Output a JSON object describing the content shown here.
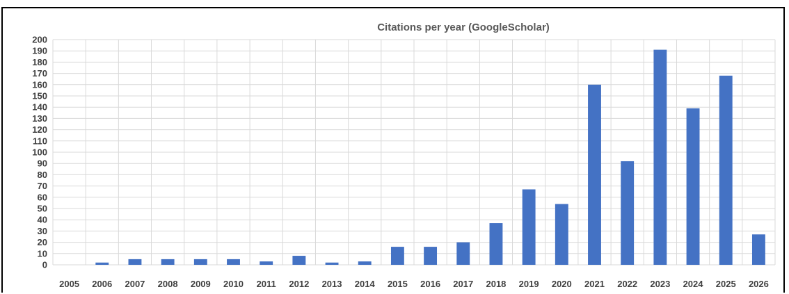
{
  "chart_data": {
    "type": "bar",
    "title": "Citations per year (GoogleScholar)",
    "xlabel": "",
    "ylabel": "",
    "categories": [
      "2005",
      "2006",
      "2007",
      "2008",
      "2009",
      "2010",
      "2011",
      "2012",
      "2013",
      "2014",
      "2015",
      "2016",
      "2017",
      "2018",
      "2019",
      "2020",
      "2021",
      "2022",
      "2023",
      "2024",
      "2025",
      "2026"
    ],
    "values": [
      0,
      2,
      5,
      5,
      5,
      5,
      3,
      8,
      2,
      3,
      16,
      16,
      20,
      37,
      67,
      54,
      160,
      92,
      191,
      139,
      168,
      27
    ],
    "ylim": [
      0,
      200
    ],
    "ytick_step": 10,
    "grid": true,
    "legend": "none",
    "colors": {
      "bar": "#4472C4",
      "grid": "#D9D9D9",
      "tick_text": "#404040",
      "title_text": "#595959"
    }
  }
}
